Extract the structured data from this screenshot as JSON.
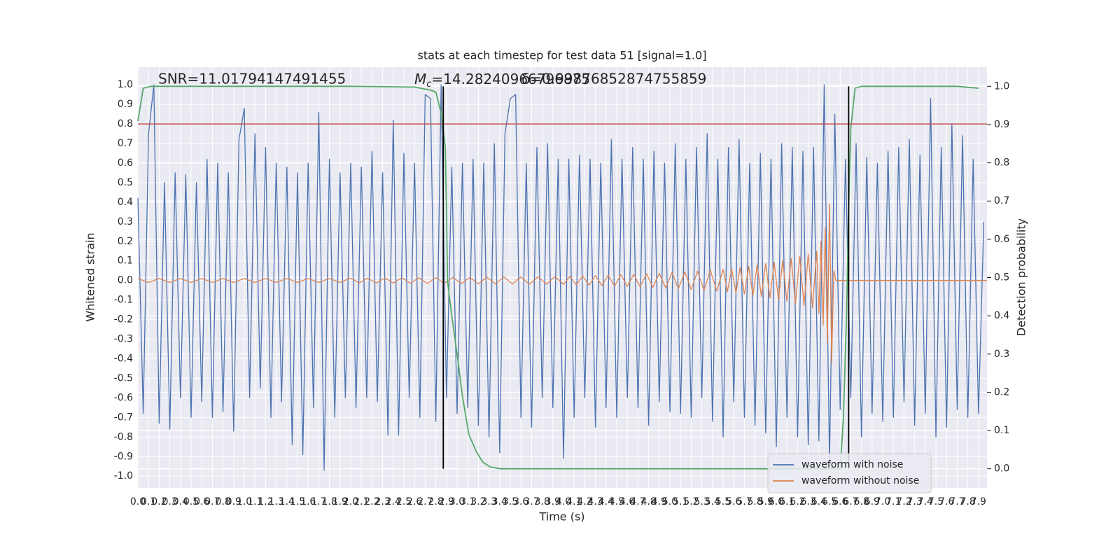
{
  "chart_data": {
    "type": "line",
    "title": "stats at each timestep for test data 51 [signal=1.0]",
    "xlabel": "Time (s)",
    "ylabel": "Whitened strain",
    "y2label": "Detection probability",
    "annotations": [
      {
        "text": "SNR=11.01794147491455"
      },
      {
        "symbol": "M",
        "subscript": "c",
        "text": "=14.28240966796875"
      },
      {
        "text": "δ=0.99876852874755859"
      }
    ],
    "grid": true,
    "legend": "lower right",
    "xlim": [
      0,
      7.98
    ],
    "ylim": [
      -1.06,
      1.09
    ],
    "y2lim": [
      -0.05,
      1.05
    ],
    "xticks": [
      {
        "value": 0,
        "label": "0.0"
      },
      0.1,
      0.2,
      0.3,
      0.4,
      0.5,
      0.6,
      0.7,
      0.8,
      0.9,
      {
        "value": 1,
        "label": "1.0"
      },
      1.1,
      1.2,
      1.3,
      1.4,
      1.5,
      1.6,
      1.7,
      1.8,
      1.9,
      {
        "value": 2,
        "label": "2.0"
      },
      2.1,
      2.2,
      2.3,
      2.4,
      2.5,
      2.6,
      2.7,
      2.8,
      2.9,
      {
        "value": 3,
        "label": "3.0"
      },
      3.1,
      3.2,
      3.3,
      3.4,
      3.5,
      3.6,
      3.7,
      3.8,
      3.9,
      {
        "value": 4,
        "label": "4.0"
      },
      4.1,
      4.2,
      4.3,
      4.4,
      4.5,
      4.6,
      4.7,
      4.8,
      4.9,
      {
        "value": 5,
        "label": "5.0"
      },
      5.1,
      5.2,
      5.3,
      5.4,
      5.5,
      5.6,
      5.7,
      5.8,
      5.9,
      {
        "value": 6,
        "label": "6.0"
      },
      6.1,
      6.2,
      6.3,
      6.4,
      6.5,
      6.6,
      6.7,
      6.8,
      6.9,
      {
        "value": 7,
        "label": "7.0"
      },
      7.1,
      7.2,
      7.3,
      7.4,
      7.5,
      7.6,
      7.7,
      7.8,
      7.9
    ],
    "yticks": [
      {
        "value": -1,
        "label": "-1.0"
      },
      -0.9,
      -0.8,
      -0.7,
      -0.6,
      -0.5,
      -0.4,
      -0.3,
      -0.2,
      -0.1,
      {
        "value": 0,
        "label": "0.0"
      },
      0.1,
      0.2,
      0.3,
      0.4,
      0.5,
      0.6,
      0.7,
      0.8,
      0.9,
      {
        "value": 1,
        "label": "1.0"
      }
    ],
    "y2ticks": [
      {
        "value": 0,
        "label": "0.0"
      },
      0.1,
      0.2,
      0.3,
      0.4,
      0.5,
      0.6,
      0.7,
      0.8,
      0.9,
      {
        "value": 1,
        "label": "1.0"
      }
    ],
    "hlines": [
      {
        "y": 0.8,
        "color": "#c44e52"
      }
    ],
    "vlines": [
      {
        "x": 2.87,
        "ymin": 0,
        "ymax": 1,
        "color": "#000000"
      },
      {
        "x": 6.68,
        "ymin": 0,
        "ymax": 1,
        "color": "#000000"
      }
    ],
    "series": [
      {
        "name": "waveform with noise",
        "color": "#4c72b0",
        "x": [
          0,
          0.05,
          0.1,
          0.15,
          0.2,
          0.25,
          0.3,
          0.35,
          0.4,
          0.45,
          0.5,
          0.55,
          0.6,
          0.65,
          0.7,
          0.75,
          0.8,
          0.85,
          0.9,
          0.95,
          1,
          1.05,
          1.1,
          1.15,
          1.2,
          1.25,
          1.3,
          1.35,
          1.4,
          1.45,
          1.5,
          1.55,
          1.6,
          1.65,
          1.7,
          1.75,
          1.8,
          1.85,
          1.9,
          1.95,
          2,
          2.05,
          2.1,
          2.15,
          2.2,
          2.25,
          2.3,
          2.35,
          2.4,
          2.45,
          2.5,
          2.55,
          2.6,
          2.65,
          2.7,
          2.75,
          2.8,
          2.85,
          2.9,
          2.95,
          3,
          3.05,
          3.1,
          3.15,
          3.2,
          3.25,
          3.3,
          3.35,
          3.4,
          3.45,
          3.5,
          3.55,
          3.6,
          3.65,
          3.7,
          3.75,
          3.8,
          3.85,
          3.9,
          3.95,
          4,
          4.05,
          4.1,
          4.15,
          4.2,
          4.25,
          4.3,
          4.35,
          4.4,
          4.45,
          4.5,
          4.55,
          4.6,
          4.65,
          4.7,
          4.75,
          4.8,
          4.85,
          4.9,
          4.95,
          5,
          5.05,
          5.1,
          5.15,
          5.2,
          5.25,
          5.3,
          5.35,
          5.4,
          5.45,
          5.5,
          5.55,
          5.6,
          5.65,
          5.7,
          5.75,
          5.8,
          5.85,
          5.9,
          5.95,
          6,
          6.05,
          6.1,
          6.15,
          6.2,
          6.25,
          6.3,
          6.35,
          6.4,
          6.45,
          6.5,
          6.55,
          6.6,
          6.65,
          6.7,
          6.75,
          6.8,
          6.85,
          6.9,
          6.95,
          7,
          7.05,
          7.1,
          7.15,
          7.2,
          7.25,
          7.3,
          7.35,
          7.4,
          7.45,
          7.5,
          7.55,
          7.6,
          7.65,
          7.7,
          7.75,
          7.8,
          7.85,
          7.9,
          7.95
        ],
        "values": [
          0.42,
          -0.68,
          0.75,
          1.0,
          -0.73,
          0.5,
          -0.76,
          0.55,
          -0.6,
          0.54,
          -0.7,
          0.5,
          -0.62,
          0.62,
          -0.7,
          0.6,
          -0.67,
          0.55,
          -0.77,
          0.72,
          0.88,
          -0.6,
          0.75,
          -0.55,
          0.68,
          -0.7,
          0.6,
          -0.62,
          0.58,
          -0.84,
          0.55,
          -0.89,
          0.6,
          -0.65,
          0.86,
          -0.97,
          0.62,
          -0.7,
          0.55,
          -0.6,
          0.6,
          -0.65,
          0.58,
          -0.6,
          0.66,
          -0.62,
          0.55,
          -0.79,
          0.82,
          -0.79,
          0.65,
          -0.6,
          0.6,
          -0.7,
          0.95,
          0.93,
          -0.72,
          1.0,
          -0.6,
          0.58,
          -0.68,
          0.6,
          -0.65,
          0.62,
          -0.74,
          0.6,
          -0.8,
          0.7,
          -0.88,
          0.75,
          0.93,
          0.95,
          -0.7,
          0.6,
          -0.75,
          0.68,
          -0.6,
          0.7,
          -0.65,
          0.62,
          -0.91,
          0.62,
          -0.7,
          0.64,
          -0.6,
          0.62,
          -0.75,
          0.6,
          -0.65,
          0.72,
          -0.7,
          0.62,
          -0.6,
          0.68,
          -0.65,
          0.62,
          -0.74,
          0.66,
          -0.62,
          0.6,
          -0.67,
          0.7,
          -0.68,
          0.62,
          -0.7,
          0.68,
          -0.6,
          0.75,
          -0.72,
          0.62,
          -0.8,
          0.68,
          -0.62,
          0.72,
          -0.7,
          0.6,
          -0.74,
          0.65,
          -0.78,
          0.62,
          -0.85,
          0.7,
          -0.7,
          0.68,
          -0.8,
          0.66,
          -0.84,
          0.68,
          -0.82,
          1.0,
          -0.93,
          0.85,
          -0.66,
          0.62,
          -0.6,
          0.7,
          -0.8,
          0.63,
          -0.68,
          0.6,
          -0.72,
          0.66,
          -0.7,
          0.68,
          -0.62,
          0.72,
          -0.74,
          0.64,
          -0.68,
          0.93,
          -0.8,
          0.68,
          -0.75,
          0.8,
          -0.66,
          0.74,
          -0.7,
          0.62,
          -0.68,
          0.3
        ]
      },
      {
        "name": "waveform without noise",
        "color": "#dd8452",
        "x": [
          0,
          0.1,
          0.2,
          0.3,
          0.4,
          0.5,
          0.6,
          0.7,
          0.8,
          0.9,
          1,
          1.1,
          1.2,
          1.3,
          1.4,
          1.5,
          1.6,
          1.7,
          1.8,
          1.9,
          2,
          2.08,
          2.16,
          2.24,
          2.32,
          2.4,
          2.48,
          2.56,
          2.64,
          2.72,
          2.8,
          2.88,
          2.96,
          3.04,
          3.12,
          3.2,
          3.28,
          3.36,
          3.44,
          3.52,
          3.6,
          3.68,
          3.76,
          3.84,
          3.92,
          4,
          4.06,
          4.12,
          4.18,
          4.24,
          4.3,
          4.36,
          4.42,
          4.48,
          4.54,
          4.6,
          4.66,
          4.72,
          4.78,
          4.84,
          4.9,
          4.96,
          5.02,
          5.08,
          5.14,
          5.2,
          5.26,
          5.32,
          5.38,
          5.44,
          5.5,
          5.54,
          5.58,
          5.62,
          5.66,
          5.7,
          5.74,
          5.78,
          5.82,
          5.86,
          5.9,
          5.94,
          5.98,
          6.02,
          6.06,
          6.1,
          6.14,
          6.18,
          6.22,
          6.26,
          6.3,
          6.34,
          6.38,
          6.4,
          6.42,
          6.44,
          6.46,
          6.48,
          6.5,
          6.52,
          6.54,
          6.56,
          7.98
        ],
        "values": [
          0.01,
          -0.01,
          0.01,
          -0.01,
          0.01,
          -0.01,
          0.01,
          -0.01,
          0.01,
          -0.01,
          0.01,
          -0.01,
          0.01,
          -0.01,
          0.01,
          -0.01,
          0.01,
          -0.01,
          0.01,
          -0.01,
          0.012,
          -0.012,
          0.012,
          -0.013,
          0.013,
          -0.013,
          0.014,
          -0.014,
          0.014,
          -0.015,
          0.015,
          -0.015,
          0.016,
          -0.016,
          0.016,
          -0.017,
          0.017,
          -0.017,
          0.018,
          -0.018,
          0.018,
          -0.019,
          0.019,
          -0.019,
          0.02,
          -0.02,
          0.021,
          -0.022,
          0.023,
          -0.024,
          0.025,
          -0.026,
          0.027,
          -0.028,
          0.029,
          -0.03,
          0.031,
          -0.032,
          0.034,
          -0.035,
          0.037,
          -0.038,
          0.04,
          -0.042,
          0.044,
          -0.046,
          0.048,
          -0.05,
          0.052,
          -0.054,
          0.056,
          -0.058,
          0.06,
          -0.063,
          0.066,
          -0.069,
          0.072,
          -0.075,
          0.078,
          -0.082,
          0.086,
          -0.09,
          0.094,
          -0.098,
          0.102,
          -0.107,
          0.112,
          -0.117,
          0.122,
          -0.128,
          0.134,
          -0.14,
          0.15,
          -0.17,
          0.2,
          -0.23,
          0.27,
          -0.32,
          0.39,
          -0.42,
          0.05,
          0,
          0
        ]
      },
      {
        "color": "#55a868",
        "axis": "y2",
        "x": [
          0,
          0.05,
          0.12,
          1.0,
          2.0,
          2.6,
          2.75,
          2.8,
          2.85,
          2.89,
          2.9,
          2.91,
          2.95,
          3.0,
          3.05,
          3.11,
          3.18,
          3.24,
          3.31,
          3.41,
          4.0,
          5.0,
          6.0,
          6.6,
          6.63,
          6.66,
          6.68,
          6.7,
          6.74,
          6.8,
          7.5,
          7.7,
          7.9
        ],
        "values": [
          0.909,
          0.995,
          1.0,
          1.0,
          1.0,
          0.998,
          0.99,
          0.985,
          0.93,
          0.84,
          0.675,
          0.49,
          0.4,
          0.3,
          0.19,
          0.09,
          0.045,
          0.018,
          0.005,
          0,
          0,
          0,
          0,
          0,
          0.13,
          0.4,
          0.675,
          0.89,
          0.995,
          1.0,
          1.0,
          1.0,
          0.995
        ]
      }
    ]
  }
}
